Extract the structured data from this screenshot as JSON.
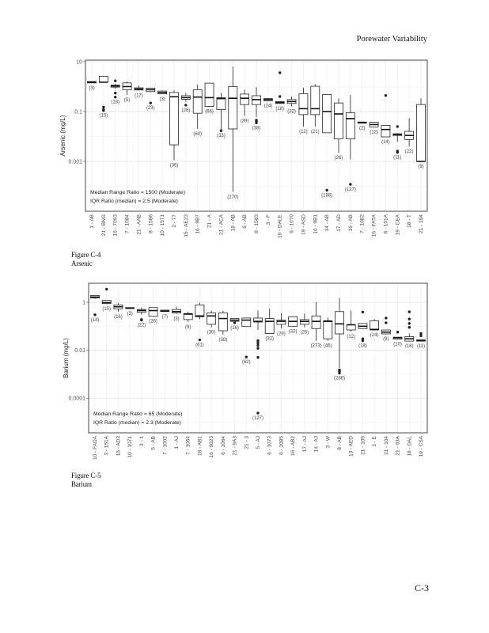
{
  "header": {
    "title": "Porewater Variability"
  },
  "footer": {
    "page_number": "C-3"
  },
  "figures": [
    {
      "number": "Figure C-4",
      "caption": "Arsenic"
    },
    {
      "number": "Figure C-5",
      "caption": "Barium"
    }
  ],
  "chart_data": [
    {
      "type": "boxplot",
      "title": "",
      "ylabel": "Arsenic (mg/L)",
      "xlabel": "",
      "yscale": "log",
      "ylim": [
        1e-05,
        11.5
      ],
      "yticks": [
        10,
        0.1,
        0.001
      ],
      "ytick_labels": [
        "10",
        "0.1",
        "0.001"
      ],
      "grid": true,
      "annotations": [
        "Median Range Ratio = 1500 (Moderate)",
        "IQR Ratio (median) = 2.5 (Moderate)"
      ],
      "annotation_placement": "bottom-left",
      "categories": [
        "1 - AB",
        "21 - BNG",
        "16 - 7093",
        "7 - 1084",
        "21 - AAB",
        "8 - 1586",
        "10 - 1571",
        "2 - 77",
        "15 - AE23",
        "16 - 9B7",
        "21 - A",
        "21 - ACA",
        "18 - AB",
        "6 - AB",
        "8 - 1583",
        "3 - F",
        "10 - DALE",
        "6 - 1070",
        "19 - ASD",
        "16 - 9B1",
        "14 - AB",
        "17 - AD",
        "16 - AB",
        "7 - 1082",
        "16 - FATA",
        "8 - 101A",
        "19 - CEA",
        "18 - T",
        "21 - 104"
      ],
      "counts": [
        "(3)",
        "(15)",
        "(18)",
        "(5)",
        "(17)",
        "(23)",
        "(3)",
        "(36)",
        "(26)",
        "(60)",
        "(66)",
        "(33)",
        "(270)",
        "(39)",
        "(38)",
        "(24)",
        "(18)",
        "(32)",
        "(12)",
        "(21)",
        "(188)",
        "(26)",
        "(127)",
        "(2)",
        "(12)",
        "(14)",
        "(11)",
        "(22)",
        "(9)"
      ],
      "boxes": [
        {
          "min": 1.4,
          "q1": 1.4,
          "median": 1.5,
          "q3": 1.6,
          "max": 1.6,
          "outliers": []
        },
        {
          "min": 1.5,
          "q1": 1.5,
          "median": 1.5,
          "q3": 2.6,
          "max": 2.6,
          "outliers": [
            0.15,
            0.12,
            0.11
          ]
        },
        {
          "min": 0.8,
          "q1": 0.95,
          "median": 1.05,
          "q3": 1.15,
          "max": 1.3,
          "outliers": [
            1.7,
            0.55,
            0.38
          ]
        },
        {
          "min": 0.46,
          "q1": 0.75,
          "median": 1.0,
          "q3": 1.4,
          "max": 1.6,
          "outliers": []
        },
        {
          "min": 0.7,
          "q1": 0.73,
          "median": 0.8,
          "q3": 0.89,
          "max": 1.1,
          "outliers": []
        },
        {
          "min": 0.6,
          "q1": 0.63,
          "median": 0.75,
          "q3": 0.87,
          "max": 0.9,
          "outliers": [
            0.22
          ]
        },
        {
          "min": 0.5,
          "q1": 0.51,
          "median": 0.58,
          "q3": 0.66,
          "max": 0.7,
          "outliers": []
        },
        {
          "min": 0.0011,
          "q1": 0.0046,
          "median": 0.39,
          "q3": 0.58,
          "max": 0.71,
          "outliers": []
        },
        {
          "min": 0.25,
          "q1": 0.31,
          "median": 0.36,
          "q3": 0.43,
          "max": 0.56,
          "outliers": [
            0.18
          ]
        },
        {
          "min": 0.02,
          "q1": 0.085,
          "median": 0.38,
          "q3": 0.75,
          "max": 1.2,
          "outliers": []
        },
        {
          "min": 0.16,
          "q1": 0.16,
          "median": 0.36,
          "q3": 1.37,
          "max": 1.37,
          "outliers": []
        },
        {
          "min": 0.017,
          "q1": 0.12,
          "median": 0.33,
          "q3": 0.36,
          "max": 0.56,
          "outliers": [
            0.017
          ]
        },
        {
          "min": 6e-05,
          "q1": 0.02,
          "median": 0.34,
          "q3": 1.0,
          "max": 6.3,
          "outliers": []
        },
        {
          "min": 0.066,
          "q1": 0.19,
          "median": 0.34,
          "q3": 0.5,
          "max": 0.75,
          "outliers": []
        },
        {
          "min": 0.061,
          "q1": 0.19,
          "median": 0.3,
          "q3": 0.43,
          "max": 0.95,
          "outliers": [
            0.045,
            0.04,
            0.035
          ]
        },
        {
          "min": 0.27,
          "q1": 0.27,
          "median": 0.3,
          "q3": 0.33,
          "max": 0.33,
          "outliers": []
        },
        {
          "min": 0.21,
          "q1": 0.21,
          "median": 0.23,
          "q3": 0.25,
          "max": 0.25,
          "outliers": [
            0.4,
            3.6
          ]
        },
        {
          "min": 0.16,
          "q1": 0.21,
          "median": 0.25,
          "q3": 0.3,
          "max": 0.4,
          "outliers": []
        },
        {
          "min": 0.025,
          "q1": 0.075,
          "median": 0.13,
          "q3": 0.52,
          "max": 0.9,
          "outliers": []
        },
        {
          "min": 0.025,
          "q1": 0.075,
          "median": 0.13,
          "q3": 1.03,
          "max": 1.25,
          "outliers": []
        },
        {
          "min": 0.014,
          "q1": 0.014,
          "median": 0.1,
          "q3": 0.48,
          "max": 0.48,
          "outliers": [
            7e-05
          ]
        },
        {
          "min": 0.0022,
          "q1": 0.008,
          "median": 0.08,
          "q3": 0.22,
          "max": 0.34,
          "outliers": []
        },
        {
          "min": 0.0012,
          "q1": 0.008,
          "median": 0.052,
          "q3": 0.09,
          "max": 0.46,
          "outliers": [
            0.00012
          ]
        },
        {
          "min": 0.034,
          "q1": 0.034,
          "median": 0.036,
          "q3": 0.038,
          "max": 0.038,
          "outliers": []
        },
        {
          "min": 0.024,
          "q1": 0.024,
          "median": 0.03,
          "q3": 0.037,
          "max": 0.037,
          "outliers": []
        },
        {
          "min": 0.0096,
          "q1": 0.0096,
          "median": 0.019,
          "q3": 0.028,
          "max": 0.028,
          "outliers": [
            0.44
          ]
        },
        {
          "min": 0.006,
          "q1": 0.011,
          "median": 0.012,
          "q3": 0.0128,
          "max": 0.0135,
          "outliers": [
            0.025,
            0.0026,
            0.0023
          ]
        },
        {
          "min": 0.004,
          "q1": 0.0075,
          "median": 0.011,
          "q3": 0.016,
          "max": 0.055,
          "outliers": []
        },
        {
          "min": 0.001,
          "q1": 0.001,
          "median": 0.001,
          "q3": 0.19,
          "max": 0.34,
          "outliers": []
        }
      ]
    },
    {
      "type": "boxplot",
      "title": "",
      "ylabel": "Barium (mg/L)",
      "xlabel": "",
      "yscale": "log",
      "ylim": [
        3.6e-06,
        6.2
      ],
      "yticks": [
        1,
        0.01,
        0.0001
      ],
      "ytick_labels": [
        "1",
        "0.01",
        "0.0001"
      ],
      "grid": true,
      "annotations": [
        "Median Range Ratio = 65 (Moderate)",
        "IQR Ratio (median) = 2.3 (Moderate)"
      ],
      "annotation_placement": "bottom-left",
      "categories": [
        "10 - FADA",
        "3 - 151A",
        "16 - AD3",
        "10 - 1071",
        "3 - 1",
        "5 - AB",
        "7 - 1002",
        "1 - AJ",
        "7 - 1064",
        "18 - AB1",
        "16 - 9023",
        "6 - 1064",
        "21 - 9A3",
        "21 - 3",
        "5 - AJ",
        "6 - 1073",
        "6 - 1085",
        "16 - AB2",
        "17 - AJ",
        "14 - AJ",
        "3 - W",
        "8 - AB",
        "13 - AED",
        "21 - 105",
        "3 - E",
        "21 - 104",
        "21 - 93A",
        "18 - DAL",
        "19 - CSA"
      ],
      "counts": [
        "(14)",
        "(15)",
        "(16)",
        "(3)",
        "(22)",
        "(26)",
        "(7)",
        "(3)",
        "(9)",
        "(61)",
        "(30)",
        "(38)",
        "(16)",
        "(62)",
        "(127)",
        "(32)",
        "(29)",
        "(33)",
        "(26)",
        "(273)",
        "(46)",
        "(288)",
        "(12)",
        "(18)",
        "(24)",
        "(9)",
        "(10)",
        "(18)",
        "(11)"
      ],
      "boxes": [
        {
          "min": 1.4,
          "q1": 1.5,
          "median": 1.65,
          "q3": 1.9,
          "max": 1.9,
          "outliers": [
            0.3
          ]
        },
        {
          "min": 0.85,
          "q1": 0.88,
          "median": 0.97,
          "q3": 1.2,
          "max": 1.2,
          "outliers": [
            3.5
          ]
        },
        {
          "min": 0.4,
          "q1": 0.53,
          "median": 0.65,
          "q3": 0.78,
          "max": 0.9,
          "outliers": []
        },
        {
          "min": 0.55,
          "q1": 0.55,
          "median": 0.57,
          "q3": 0.6,
          "max": 0.6,
          "outliers": []
        },
        {
          "min": 0.3,
          "q1": 0.38,
          "median": 0.45,
          "q3": 0.5,
          "max": 0.6,
          "outliers": [
            0.19,
            0.18
          ]
        },
        {
          "min": 0.26,
          "q1": 0.26,
          "median": 0.45,
          "q3": 0.6,
          "max": 0.6,
          "outliers": []
        },
        {
          "min": 0.41,
          "q1": 0.41,
          "median": 0.43,
          "q3": 0.47,
          "max": 0.47,
          "outliers": []
        },
        {
          "min": 0.33,
          "q1": 0.36,
          "median": 0.41,
          "q3": 0.5,
          "max": 0.65,
          "outliers": []
        },
        {
          "min": 0.15,
          "q1": 0.19,
          "median": 0.32,
          "q3": 0.34,
          "max": 0.4,
          "outliers": []
        },
        {
          "min": 0.2,
          "q1": 0.25,
          "median": 0.27,
          "q3": 0.78,
          "max": 0.95,
          "outliers": [
            0.027
          ]
        },
        {
          "min": 0.09,
          "q1": 0.12,
          "median": 0.27,
          "q3": 0.36,
          "max": 0.45,
          "outliers": []
        },
        {
          "min": 0.045,
          "q1": 0.065,
          "median": 0.21,
          "q3": 0.36,
          "max": 0.44,
          "outliers": []
        },
        {
          "min": 0.16,
          "q1": 0.16,
          "median": 0.18,
          "q3": 0.21,
          "max": 0.21,
          "outliers": [
            0.14
          ]
        },
        {
          "min": 0.097,
          "q1": 0.097,
          "median": 0.18,
          "q3": 0.22,
          "max": 0.22,
          "outliers": [
            0.0052
          ]
        },
        {
          "min": 0.07,
          "q1": 0.15,
          "median": 0.16,
          "q3": 0.22,
          "max": 0.45,
          "outliers": [
            0.025,
            0.02,
            0.016,
            0.012,
            0.005,
            2.4e-05
          ]
        },
        {
          "min": 0.05,
          "q1": 0.05,
          "median": 0.16,
          "q3": 0.21,
          "max": 0.55,
          "outliers": []
        },
        {
          "min": 0.08,
          "q1": 0.12,
          "median": 0.16,
          "q3": 0.18,
          "max": 0.35,
          "outliers": []
        },
        {
          "min": 0.1,
          "q1": 0.1,
          "median": 0.16,
          "q3": 0.25,
          "max": 0.25,
          "outliers": []
        },
        {
          "min": 0.09,
          "q1": 0.12,
          "median": 0.16,
          "q3": 0.19,
          "max": 0.34,
          "outliers": []
        },
        {
          "min": 0.025,
          "q1": 0.08,
          "median": 0.16,
          "q3": 0.27,
          "max": 1.0,
          "outliers": []
        },
        {
          "min": 0.025,
          "q1": 0.03,
          "median": 0.16,
          "q3": 0.17,
          "max": 0.23,
          "outliers": []
        },
        {
          "min": 0.0018,
          "q1": 0.048,
          "median": 0.126,
          "q3": 0.41,
          "max": 1.5,
          "outliers": [
            0.0015,
            0.0013,
            0.0011
          ]
        },
        {
          "min": 0.06,
          "q1": 0.07,
          "median": 0.115,
          "q3": 0.115,
          "max": 0.45,
          "outliers": []
        },
        {
          "min": 0.08,
          "q1": 0.08,
          "median": 0.1,
          "q3": 0.13,
          "max": 0.13,
          "outliers": [
            0.39,
            0.03,
            0.025
          ]
        },
        {
          "min": 0.07,
          "q1": 0.07,
          "median": 0.074,
          "q3": 0.17,
          "max": 0.2,
          "outliers": []
        },
        {
          "min": 0.048,
          "q1": 0.048,
          "median": 0.057,
          "q3": 0.07,
          "max": 0.07,
          "outliers": [
            0.22,
            0.14
          ]
        },
        {
          "min": 0.029,
          "q1": 0.029,
          "median": 0.033,
          "q3": 0.035,
          "max": 0.035,
          "outliers": [
            0.057
          ]
        },
        {
          "min": 0.024,
          "q1": 0.024,
          "median": 0.03,
          "q3": 0.037,
          "max": 0.05,
          "outliers": [
            0.4,
            0.2,
            0.13,
            0.09
          ]
        },
        {
          "min": 0.024,
          "q1": 0.024,
          "median": 0.025,
          "q3": 0.027,
          "max": 0.027,
          "outliers": [
            0.05,
            0.04
          ]
        }
      ]
    }
  ]
}
